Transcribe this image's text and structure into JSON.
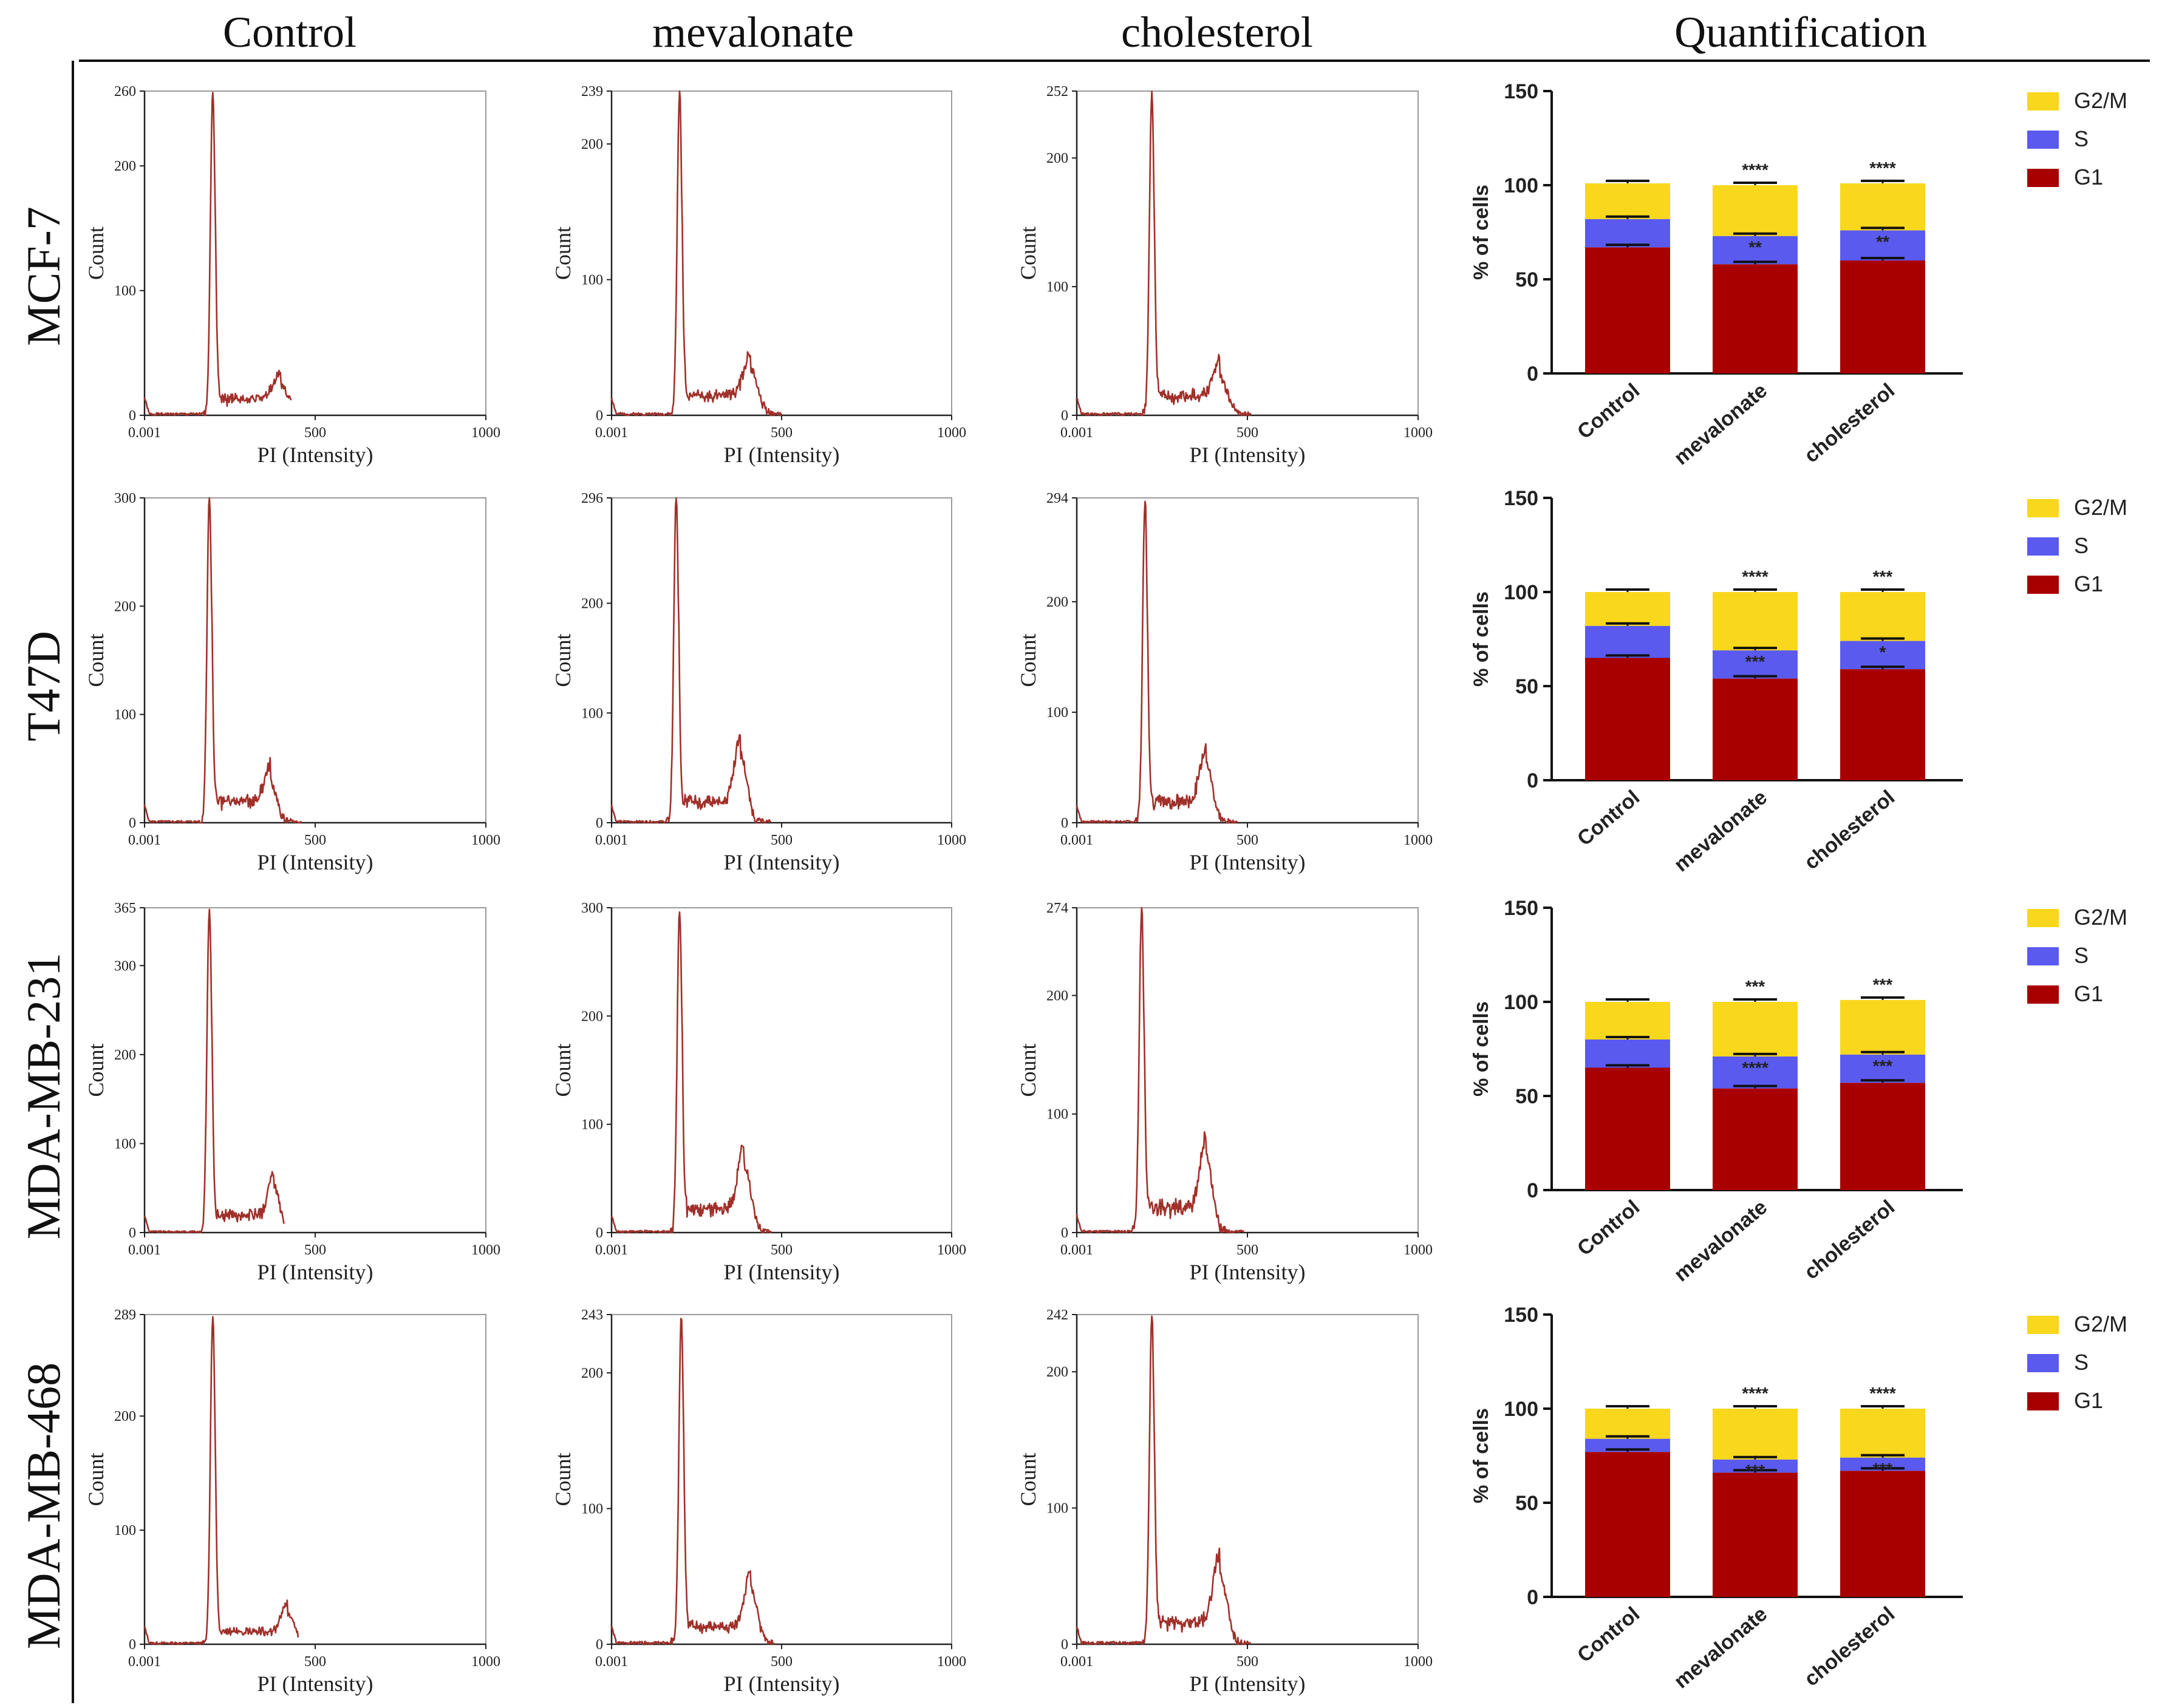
{
  "figure": {
    "column_headers": [
      "Control",
      "mevalonate",
      "cholesterol",
      "Quantification"
    ],
    "row_labels": [
      "MCF-7",
      "T47D",
      "MDA-MB-231",
      "MDA-MB-468"
    ]
  },
  "colors": {
    "histogram_line": "#a0302a",
    "axis": "#222222",
    "frame": "#9a9a9a",
    "g2m": "#f9d71c",
    "s": "#5a5aee",
    "g1": "#a80000"
  },
  "chart_data": [
    {
      "type": "line",
      "panel": "MCF-7 Control",
      "xlabel": "PI (Intensity)",
      "ylabel": "Count",
      "x_ticks": [
        "0.001",
        "500",
        "1000"
      ],
      "y_ticks": [
        "0",
        "100",
        "200",
        "260"
      ],
      "ymax": 260,
      "curve": {
        "g1_pos": 200,
        "g1_peak": 260,
        "g1_width": 7,
        "g2_pos": 400,
        "g2_peak": 22,
        "g2_width": 22,
        "s_level": 12,
        "end": 430
      }
    },
    {
      "type": "line",
      "panel": "MCF-7 mevalonate",
      "xlabel": "PI (Intensity)",
      "ylabel": "Count",
      "x_ticks": [
        "0.001",
        "500",
        "1000"
      ],
      "y_ticks": [
        "0",
        "100",
        "200",
        "239"
      ],
      "ymax": 239,
      "curve": {
        "g1_pos": 200,
        "g1_peak": 239,
        "g1_width": 7,
        "g2_pos": 410,
        "g2_peak": 33,
        "g2_width": 20,
        "s_level": 13,
        "end": 500
      }
    },
    {
      "type": "line",
      "panel": "MCF-7 cholesterol",
      "xlabel": "PI (Intensity)",
      "ylabel": "Count",
      "x_ticks": [
        "0.001",
        "500",
        "1000"
      ],
      "y_ticks": [
        "0",
        "100",
        "200",
        "252"
      ],
      "ymax": 252,
      "curve": {
        "g1_pos": 220,
        "g1_peak": 252,
        "g1_width": 7,
        "g2_pos": 420,
        "g2_peak": 28,
        "g2_width": 20,
        "s_level": 14,
        "end": 510
      }
    },
    {
      "type": "bar",
      "panel": "MCF-7 Quantification",
      "ylabel": "% of cells",
      "ylim": [
        0,
        150
      ],
      "y_ticks": [
        "0",
        "50",
        "100",
        "150"
      ],
      "categories": [
        "Control",
        "mevalonate",
        "cholesterol"
      ],
      "legend": [
        "G2/M",
        "S",
        "G1"
      ],
      "series": [
        {
          "name": "G1",
          "values": [
            67,
            58,
            60
          ]
        },
        {
          "name": "S",
          "values": [
            15,
            15,
            16
          ]
        },
        {
          "name": "G2/M",
          "values": [
            19,
            27,
            25
          ]
        }
      ],
      "annotations": {
        "G2/M": [
          "",
          "****",
          "****"
        ],
        "S": [
          "",
          "**",
          "**"
        ]
      }
    },
    {
      "type": "line",
      "panel": "T47D Control",
      "xlabel": "PI (Intensity)",
      "ylabel": "Count",
      "x_ticks": [
        "0.001",
        "500",
        "1000"
      ],
      "y_ticks": [
        "0",
        "100",
        "200",
        "300"
      ],
      "ymax": 300,
      "curve": {
        "g1_pos": 190,
        "g1_peak": 300,
        "g1_width": 7,
        "g2_pos": 370,
        "g2_peak": 35,
        "g2_width": 18,
        "s_level": 18,
        "end": 460
      }
    },
    {
      "type": "line",
      "panel": "T47D mevalonate",
      "xlabel": "PI (Intensity)",
      "ylabel": "Count",
      "x_ticks": [
        "0.001",
        "500",
        "1000"
      ],
      "y_ticks": [
        "0",
        "100",
        "200",
        "296"
      ],
      "ymax": 296,
      "curve": {
        "g1_pos": 190,
        "g1_peak": 296,
        "g1_width": 7,
        "g2_pos": 380,
        "g2_peak": 60,
        "g2_width": 18,
        "s_level": 18,
        "end": 470
      }
    },
    {
      "type": "line",
      "panel": "T47D cholesterol",
      "xlabel": "PI (Intensity)",
      "ylabel": "Count",
      "x_ticks": [
        "0.001",
        "500",
        "1000"
      ],
      "y_ticks": [
        "0",
        "100",
        "200",
        "294"
      ],
      "ymax": 294,
      "curve": {
        "g1_pos": 200,
        "g1_peak": 294,
        "g1_width": 7,
        "g2_pos": 380,
        "g2_peak": 52,
        "g2_width": 18,
        "s_level": 18,
        "end": 470
      }
    },
    {
      "type": "bar",
      "panel": "T47D Quantification",
      "ylabel": "% of cells",
      "ylim": [
        0,
        150
      ],
      "y_ticks": [
        "0",
        "50",
        "100",
        "150"
      ],
      "categories": [
        "Control",
        "mevalonate",
        "cholesterol"
      ],
      "legend": [
        "G2/M",
        "S",
        "G1"
      ],
      "series": [
        {
          "name": "G1",
          "values": [
            65,
            54,
            59
          ]
        },
        {
          "name": "S",
          "values": [
            17,
            15,
            15
          ]
        },
        {
          "name": "G2/M",
          "values": [
            18,
            31,
            26
          ]
        }
      ],
      "annotations": {
        "G2/M": [
          "",
          "****",
          "***"
        ],
        "S": [
          "",
          "***",
          "*"
        ]
      }
    },
    {
      "type": "line",
      "panel": "MDA-MB-231 Control",
      "xlabel": "PI (Intensity)",
      "ylabel": "Count",
      "x_ticks": [
        "0.001",
        "500",
        "1000"
      ],
      "y_ticks": [
        "0",
        "100",
        "200",
        "300",
        "365"
      ],
      "ymax": 365,
      "curve": {
        "g1_pos": 190,
        "g1_peak": 365,
        "g1_width": 7,
        "g2_pos": 380,
        "g2_peak": 50,
        "g2_width": 16,
        "s_level": 18,
        "end": 410
      }
    },
    {
      "type": "line",
      "panel": "MDA-MB-231 mevalonate",
      "xlabel": "PI (Intensity)",
      "ylabel": "Count",
      "x_ticks": [
        "0.001",
        "500",
        "1000"
      ],
      "y_ticks": [
        "0",
        "100",
        "200",
        "300"
      ],
      "ymax": 300,
      "curve": {
        "g1_pos": 200,
        "g1_peak": 300,
        "g1_width": 7,
        "g2_pos": 390,
        "g2_peak": 62,
        "g2_width": 18,
        "s_level": 20,
        "end": 470
      }
    },
    {
      "type": "line",
      "panel": "MDA-MB-231 cholesterol",
      "xlabel": "PI (Intensity)",
      "ylabel": "Count",
      "x_ticks": [
        "0.001",
        "500",
        "1000"
      ],
      "y_ticks": [
        "0",
        "100",
        "200",
        "274"
      ],
      "ymax": 274,
      "curve": {
        "g1_pos": 190,
        "g1_peak": 274,
        "g1_width": 7,
        "g2_pos": 380,
        "g2_peak": 60,
        "g2_width": 18,
        "s_level": 20,
        "end": 490
      }
    },
    {
      "type": "bar",
      "panel": "MDA-MB-231 Quantification",
      "ylabel": "% of cells",
      "ylim": [
        0,
        150
      ],
      "y_ticks": [
        "0",
        "50",
        "100",
        "150"
      ],
      "categories": [
        "Control",
        "mevalonate",
        "cholesterol"
      ],
      "legend": [
        "G2/M",
        "S",
        "G1"
      ],
      "series": [
        {
          "name": "G1",
          "values": [
            65,
            54,
            57
          ]
        },
        {
          "name": "S",
          "values": [
            15,
            17,
            15
          ]
        },
        {
          "name": "G2/M",
          "values": [
            20,
            29,
            29
          ]
        }
      ],
      "annotations": {
        "G2/M": [
          "",
          "***",
          "***"
        ],
        "S": [
          "",
          "****",
          "***"
        ]
      }
    },
    {
      "type": "line",
      "panel": "MDA-MB-468 Control",
      "xlabel": "PI (Intensity)",
      "ylabel": "Count",
      "x_ticks": [
        "0.001",
        "500",
        "1000"
      ],
      "y_ticks": [
        "0",
        "100",
        "200",
        "289"
      ],
      "ymax": 289,
      "curve": {
        "g1_pos": 200,
        "g1_peak": 289,
        "g1_width": 7,
        "g2_pos": 420,
        "g2_peak": 25,
        "g2_width": 18,
        "s_level": 10,
        "end": 450
      }
    },
    {
      "type": "line",
      "panel": "MDA-MB-468 mevalonate",
      "xlabel": "PI (Intensity)",
      "ylabel": "Count",
      "x_ticks": [
        "0.001",
        "500",
        "1000"
      ],
      "y_ticks": [
        "0",
        "100",
        "200",
        "243"
      ],
      "ymax": 243,
      "curve": {
        "g1_pos": 205,
        "g1_peak": 243,
        "g1_width": 7,
        "g2_pos": 410,
        "g2_peak": 40,
        "g2_width": 18,
        "s_level": 12,
        "end": 480
      }
    },
    {
      "type": "line",
      "panel": "MDA-MB-468 cholesterol",
      "xlabel": "PI (Intensity)",
      "ylabel": "Count",
      "x_ticks": [
        "0.001",
        "500",
        "1000"
      ],
      "y_ticks": [
        "0",
        "100",
        "200",
        "242"
      ],
      "ymax": 242,
      "curve": {
        "g1_pos": 220,
        "g1_peak": 242,
        "g1_width": 7,
        "g2_pos": 420,
        "g2_peak": 50,
        "g2_width": 20,
        "s_level": 15,
        "end": 510
      }
    },
    {
      "type": "bar",
      "panel": "MDA-MB-468 Quantification",
      "ylabel": "% of cells",
      "ylim": [
        0,
        150
      ],
      "y_ticks": [
        "0",
        "50",
        "100",
        "150"
      ],
      "categories": [
        "Control",
        "mevalonate",
        "cholesterol"
      ],
      "legend": [
        "G2/M",
        "S",
        "G1"
      ],
      "series": [
        {
          "name": "G1",
          "values": [
            77,
            66,
            67
          ]
        },
        {
          "name": "S",
          "values": [
            7,
            7,
            7
          ]
        },
        {
          "name": "G2/M",
          "values": [
            16,
            27,
            26
          ]
        }
      ],
      "annotations": {
        "G2/M": [
          "",
          "****",
          "****"
        ],
        "S": [
          "",
          "***",
          "***"
        ]
      }
    }
  ]
}
